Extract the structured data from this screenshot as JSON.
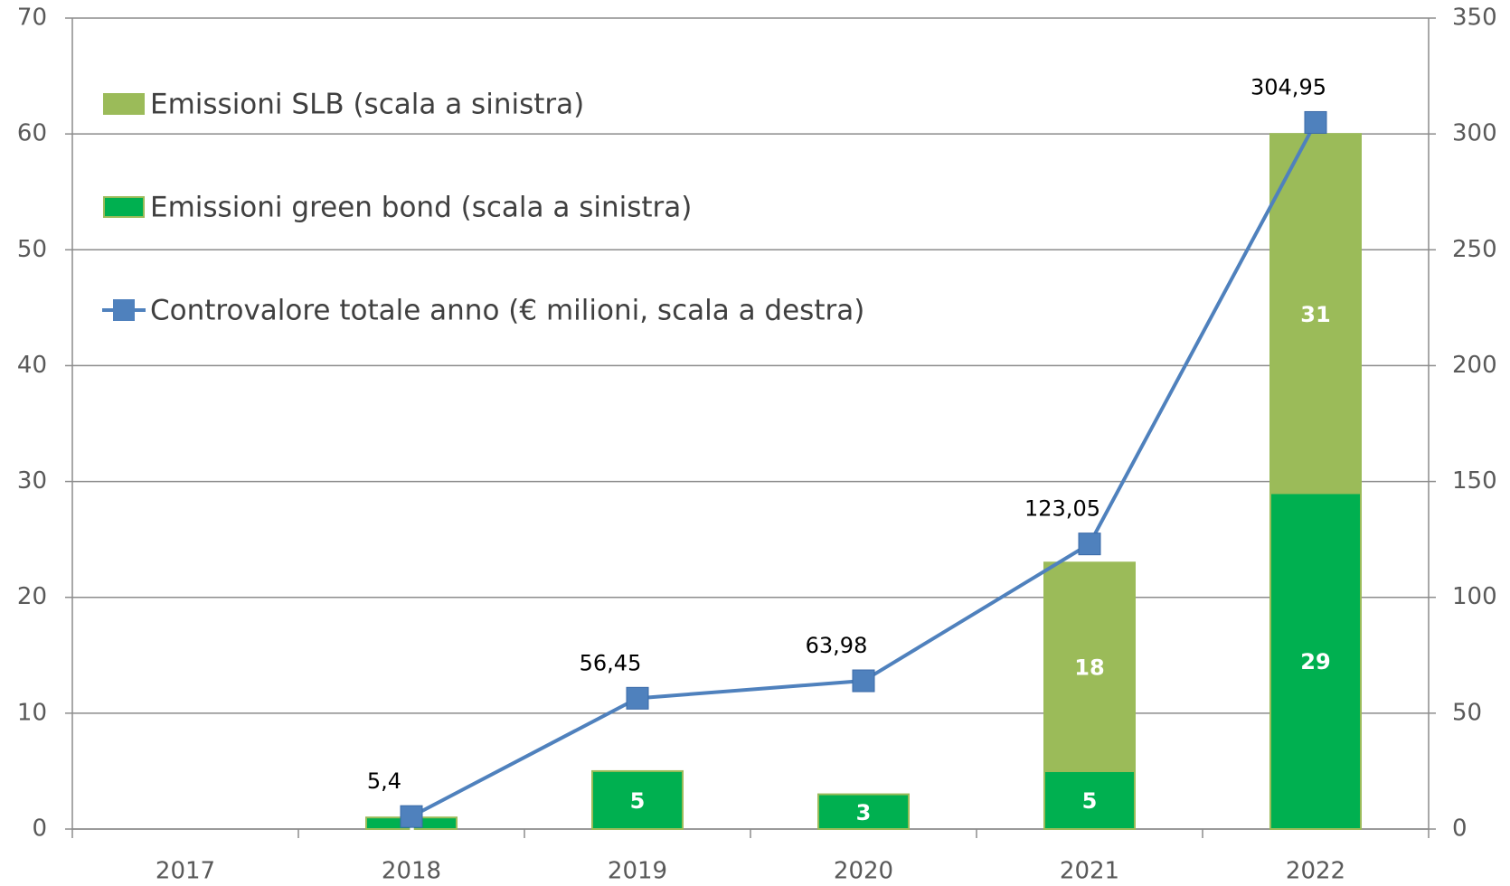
{
  "chart_data": {
    "type": "bar_line",
    "categories": [
      "2017",
      "2018",
      "2019",
      "2020",
      "2021",
      "2022"
    ],
    "series": [
      {
        "name": "Emissioni SLB (scala a sinistra)",
        "type": "bar",
        "color": "#9bbb59",
        "values": [
          null,
          null,
          null,
          null,
          18,
          31
        ]
      },
      {
        "name": "Emissioni green bond (scala a sinistra)",
        "type": "bar",
        "color": "#00b050",
        "values": [
          null,
          1,
          5,
          3,
          5,
          29
        ]
      },
      {
        "name": "Controvalore totale anno (€ milioni, scala a destra)",
        "type": "line",
        "axis": "y2",
        "color": "#4f81bd",
        "values": [
          null,
          5.4,
          56.45,
          63.98,
          123.05,
          304.95
        ],
        "value_labels": [
          null,
          "5,4",
          "56,45",
          "63,98",
          "123,05",
          "304,95"
        ]
      }
    ],
    "stack_order": [
      1,
      0
    ],
    "ylim": [
      0,
      70
    ],
    "yticks": [
      0,
      10,
      20,
      30,
      40,
      50,
      60,
      70
    ],
    "y2lim": [
      0,
      350
    ],
    "y2ticks": [
      0,
      50,
      100,
      150,
      200,
      250,
      300,
      350
    ],
    "grid": true,
    "legend": "upper left"
  }
}
